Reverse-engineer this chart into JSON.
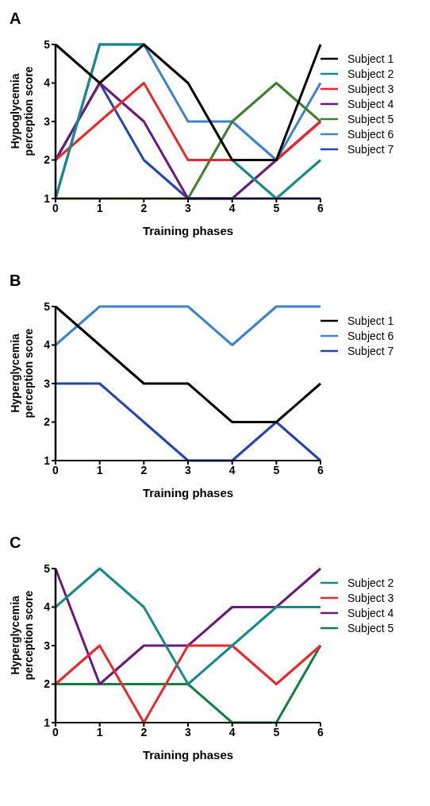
{
  "chart_data": [
    {
      "type": "line",
      "title": "A",
      "xlabel": "Training phases",
      "ylabel": "Hypoglycemia perception score",
      "x": [
        0,
        1,
        2,
        3,
        4,
        5,
        6
      ],
      "xlim": [
        0,
        6
      ],
      "xticks": [
        0,
        1,
        2,
        3,
        4,
        5,
        6
      ],
      "ylim": [
        1,
        5
      ],
      "yticks": [
        1,
        2,
        3,
        4,
        5
      ],
      "grid": false,
      "legend": "right",
      "marker": "none",
      "line_style": "solid",
      "series": [
        {
          "name": "Subject 1",
          "color": "#000000",
          "values": [
            5,
            4,
            5,
            4,
            2,
            2,
            5
          ]
        },
        {
          "name": "Subject 2",
          "color": "#168a8a",
          "values": [
            1,
            5,
            5,
            null,
            2,
            1,
            2
          ]
        },
        {
          "name": "Subject 3",
          "color": "#e8282b",
          "values": [
            2,
            3,
            4,
            2,
            2,
            2,
            3
          ]
        },
        {
          "name": "Subject 4",
          "color": "#6b1a7b",
          "values": [
            2,
            4,
            3,
            1,
            1,
            2,
            3
          ]
        },
        {
          "name": "Subject 5",
          "color": "#3e7f2e",
          "values": [
            1,
            1,
            1,
            1,
            3,
            4,
            3
          ]
        },
        {
          "name": "Subject 6",
          "color": "#3d82cc",
          "values": [
            1,
            5,
            5,
            3,
            3,
            2,
            4
          ]
        },
        {
          "name": "Subject 7",
          "color": "#2446a8",
          "values": [
            2,
            4,
            2,
            1,
            1,
            1,
            1
          ]
        }
      ]
    },
    {
      "type": "line",
      "title": "B",
      "xlabel": "Training phases",
      "ylabel": "Hyperglycemia perception score",
      "x": [
        0,
        1,
        2,
        3,
        4,
        5,
        6
      ],
      "xlim": [
        0,
        6
      ],
      "xticks": [
        0,
        1,
        2,
        3,
        4,
        5,
        6
      ],
      "ylim": [
        1,
        5
      ],
      "yticks": [
        1,
        2,
        3,
        4,
        5
      ],
      "grid": false,
      "legend": "right",
      "marker": "none",
      "line_style": "solid",
      "series": [
        {
          "name": "Subject 1",
          "color": "#000000",
          "values": [
            5,
            4,
            3,
            3,
            2,
            2,
            3
          ]
        },
        {
          "name": "Subject 6",
          "color": "#3d82cc",
          "values": [
            4,
            5,
            5,
            5,
            4,
            5,
            5
          ]
        },
        {
          "name": "Subject 7",
          "color": "#2446a8",
          "values": [
            3,
            3,
            2,
            1,
            1,
            2,
            1
          ]
        }
      ]
    },
    {
      "type": "line",
      "title": "C",
      "xlabel": "Training phases",
      "ylabel": "Hyperglycemia perception score",
      "x": [
        0,
        1,
        2,
        3,
        4,
        5,
        6
      ],
      "xlim": [
        0,
        6
      ],
      "xticks": [
        0,
        1,
        2,
        3,
        4,
        5,
        6
      ],
      "ylim": [
        1,
        5
      ],
      "yticks": [
        1,
        2,
        3,
        4,
        5
      ],
      "grid": false,
      "legend": "top right",
      "marker": "none",
      "line_style": "solid",
      "series": [
        {
          "name": "Subject 2",
          "color": "#168a8a",
          "values": [
            4,
            5,
            4,
            2,
            3,
            4,
            4
          ]
        },
        {
          "name": "Subject 3",
          "color": "#e8282b",
          "values": [
            2,
            3,
            1,
            3,
            3,
            2,
            3
          ]
        },
        {
          "name": "Subject 4",
          "color": "#6b1a7b",
          "values": [
            5,
            2,
            3,
            3,
            4,
            4,
            5
          ]
        },
        {
          "name": "Subject 5",
          "color": "#12803f",
          "values": [
            2,
            2,
            2,
            2,
            1,
            1,
            3
          ]
        }
      ]
    }
  ]
}
